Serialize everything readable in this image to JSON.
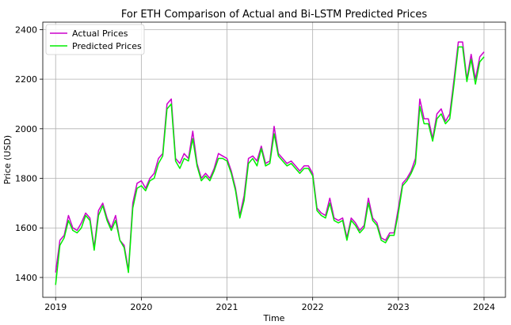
{
  "chart_data": {
    "type": "line",
    "title": "For ETH Comparison of Actual and Bi-LSTM Predicted Prices",
    "xlabel": "Time",
    "ylabel": "Price (USD)",
    "xlim": [
      2018.85,
      2024.25
    ],
    "ylim": [
      1320,
      2430
    ],
    "grid": true,
    "legend_position": "top-left",
    "x_ticks": [
      2019,
      2020,
      2021,
      2022,
      2023,
      2024
    ],
    "x_tick_labels": [
      "2019",
      "2020",
      "2021",
      "2022",
      "2023",
      "2024"
    ],
    "y_ticks": [
      1400,
      1600,
      1800,
      2000,
      2200,
      2400
    ],
    "y_tick_labels": [
      "1400",
      "1600",
      "1800",
      "2000",
      "2200",
      "2400"
    ],
    "series": [
      {
        "name": "Actual Prices",
        "color": "#cc00cc",
        "x": [
          2019.0,
          2019.05,
          2019.1,
          2019.15,
          2019.2,
          2019.25,
          2019.3,
          2019.35,
          2019.4,
          2019.45,
          2019.5,
          2019.55,
          2019.6,
          2019.65,
          2019.7,
          2019.75,
          2019.8,
          2019.85,
          2019.9,
          2019.95,
          2020.0,
          2020.05,
          2020.1,
          2020.15,
          2020.2,
          2020.25,
          2020.3,
          2020.35,
          2020.4,
          2020.45,
          2020.5,
          2020.55,
          2020.6,
          2020.65,
          2020.7,
          2020.75,
          2020.8,
          2020.85,
          2020.9,
          2020.95,
          2021.0,
          2021.05,
          2021.1,
          2021.15,
          2021.2,
          2021.25,
          2021.3,
          2021.35,
          2021.4,
          2021.45,
          2021.5,
          2021.55,
          2021.6,
          2021.65,
          2021.7,
          2021.75,
          2021.8,
          2021.85,
          2021.9,
          2021.95,
          2022.0,
          2022.05,
          2022.1,
          2022.15,
          2022.2,
          2022.25,
          2022.3,
          2022.35,
          2022.4,
          2022.45,
          2022.5,
          2022.55,
          2022.6,
          2022.65,
          2022.7,
          2022.75,
          2022.8,
          2022.85,
          2022.9,
          2022.95,
          2023.0,
          2023.05,
          2023.1,
          2023.15,
          2023.2,
          2023.25,
          2023.3,
          2023.35,
          2023.4,
          2023.45,
          2023.5,
          2023.55,
          2023.6,
          2023.65,
          2023.7,
          2023.75,
          2023.8,
          2023.85,
          2023.9,
          2023.95,
          2024.0
        ],
        "values": [
          1420,
          1550,
          1570,
          1650,
          1600,
          1590,
          1620,
          1660,
          1640,
          1520,
          1670,
          1700,
          1640,
          1600,
          1650,
          1550,
          1530,
          1430,
          1700,
          1780,
          1790,
          1760,
          1800,
          1820,
          1880,
          1900,
          2100,
          2120,
          1880,
          1860,
          1900,
          1880,
          1990,
          1860,
          1800,
          1820,
          1800,
          1840,
          1900,
          1890,
          1880,
          1830,
          1760,
          1650,
          1730,
          1880,
          1890,
          1870,
          1930,
          1860,
          1870,
          2010,
          1900,
          1880,
          1860,
          1870,
          1850,
          1830,
          1850,
          1850,
          1820,
          1680,
          1660,
          1650,
          1720,
          1640,
          1630,
          1640,
          1560,
          1640,
          1620,
          1590,
          1610,
          1720,
          1640,
          1620,
          1560,
          1550,
          1580,
          1580,
          1680,
          1780,
          1800,
          1830,
          1880,
          2120,
          2040,
          2040,
          1960,
          2060,
          2080,
          2030,
          2060,
          2200,
          2350,
          2350,
          2200,
          2300,
          2200,
          2290,
          2310
        ]
      },
      {
        "name": "Predicted Prices",
        "color": "#00ee00",
        "x": [
          2019.0,
          2019.05,
          2019.1,
          2019.15,
          2019.2,
          2019.25,
          2019.3,
          2019.35,
          2019.4,
          2019.45,
          2019.5,
          2019.55,
          2019.6,
          2019.65,
          2019.7,
          2019.75,
          2019.8,
          2019.85,
          2019.9,
          2019.95,
          2020.0,
          2020.05,
          2020.1,
          2020.15,
          2020.2,
          2020.25,
          2020.3,
          2020.35,
          2020.4,
          2020.45,
          2020.5,
          2020.55,
          2020.6,
          2020.65,
          2020.7,
          2020.75,
          2020.8,
          2020.85,
          2020.9,
          2020.95,
          2021.0,
          2021.05,
          2021.1,
          2021.15,
          2021.2,
          2021.25,
          2021.3,
          2021.35,
          2021.4,
          2021.45,
          2021.5,
          2021.55,
          2021.6,
          2021.65,
          2021.7,
          2021.75,
          2021.8,
          2021.85,
          2021.9,
          2021.95,
          2022.0,
          2022.05,
          2022.1,
          2022.15,
          2022.2,
          2022.25,
          2022.3,
          2022.35,
          2022.4,
          2022.45,
          2022.5,
          2022.55,
          2022.6,
          2022.65,
          2022.7,
          2022.75,
          2022.8,
          2022.85,
          2022.9,
          2022.95,
          2023.0,
          2023.05,
          2023.1,
          2023.15,
          2023.2,
          2023.25,
          2023.3,
          2023.35,
          2023.4,
          2023.45,
          2023.5,
          2023.55,
          2023.6,
          2023.65,
          2023.7,
          2023.75,
          2023.8,
          2023.85,
          2023.9,
          2023.95,
          2024.0
        ],
        "values": [
          1370,
          1530,
          1560,
          1630,
          1590,
          1580,
          1600,
          1650,
          1630,
          1510,
          1650,
          1690,
          1630,
          1590,
          1630,
          1550,
          1520,
          1420,
          1680,
          1760,
          1770,
          1750,
          1790,
          1800,
          1860,
          1890,
          2080,
          2100,
          1870,
          1840,
          1880,
          1870,
          1960,
          1850,
          1790,
          1810,
          1790,
          1830,
          1880,
          1880,
          1870,
          1820,
          1750,
          1640,
          1710,
          1860,
          1880,
          1850,
          1920,
          1850,
          1860,
          1980,
          1890,
          1870,
          1850,
          1860,
          1840,
          1820,
          1840,
          1840,
          1810,
          1670,
          1650,
          1640,
          1700,
          1630,
          1620,
          1630,
          1550,
          1630,
          1610,
          1580,
          1600,
          1700,
          1630,
          1610,
          1550,
          1540,
          1570,
          1570,
          1660,
          1770,
          1790,
          1820,
          1860,
          2090,
          2020,
          2020,
          1950,
          2040,
          2060,
          2020,
          2040,
          2180,
          2330,
          2330,
          2190,
          2280,
          2180,
          2270,
          2290
        ]
      }
    ]
  }
}
